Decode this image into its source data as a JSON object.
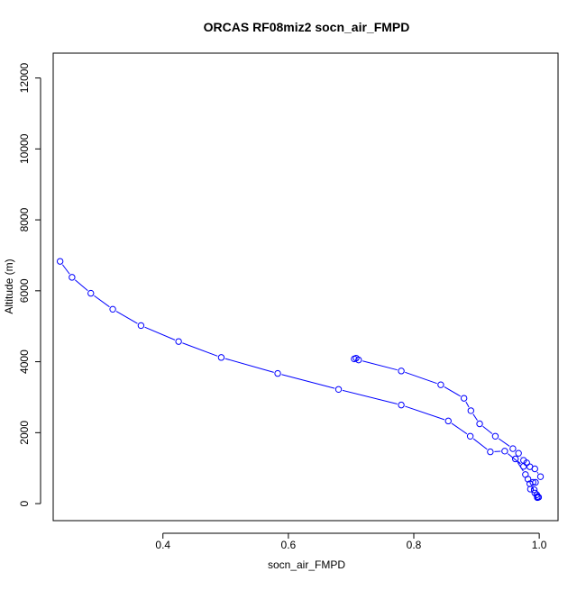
{
  "chart_data": {
    "type": "line",
    "title": "ORCAS RF08miz2 socn_air_FMPD",
    "xlabel": "socn_air_FMPD",
    "ylabel": "Altitude (m)",
    "xlim": [
      0.225,
      1.03
    ],
    "ylim": [
      -480,
      12700
    ],
    "xticks": [
      0.4,
      0.6,
      0.8,
      1.0
    ],
    "xtick_labels": [
      "0.4",
      "0.6",
      "0.8",
      "1.0"
    ],
    "yticks": [
      0,
      2000,
      4000,
      6000,
      8000,
      10000,
      12000
    ],
    "ytick_labels": [
      "0",
      "2000",
      "4000",
      "6000",
      "8000",
      "10000",
      "12000"
    ],
    "marker": "open-circle",
    "grid": false,
    "legend": "none",
    "colors": {
      "series": "#0000ff",
      "axes": "#000000"
    },
    "series": [
      {
        "x": [
          0.708,
          0.705,
          0.712,
          0.78,
          0.843,
          0.88,
          0.891,
          0.905,
          0.93,
          0.958,
          0.967,
          0.975,
          0.98,
          0.985,
          0.993,
          1.002,
          0.994,
          0.986,
          0.985,
          0.993,
          0.997,
          0.997,
          0.999,
          0.996,
          0.992,
          0.99,
          0.982,
          0.978,
          0.962,
          0.975,
          0.945,
          0.922,
          0.89,
          0.855,
          0.78,
          0.68,
          0.583,
          0.493,
          0.425,
          0.365,
          0.32,
          0.285,
          0.255,
          0.236
        ],
        "y": [
          4100,
          4080,
          4050,
          3740,
          3350,
          2970,
          2620,
          2250,
          1900,
          1550,
          1420,
          1220,
          1150,
          1040,
          980,
          760,
          600,
          410,
          560,
          300,
          200,
          170,
          180,
          250,
          390,
          600,
          690,
          820,
          1260,
          1050,
          1480,
          1460,
          1900,
          2330,
          2780,
          3220,
          3670,
          4120,
          4570,
          5020,
          5480,
          5930,
          6380,
          6830
        ]
      }
    ]
  }
}
